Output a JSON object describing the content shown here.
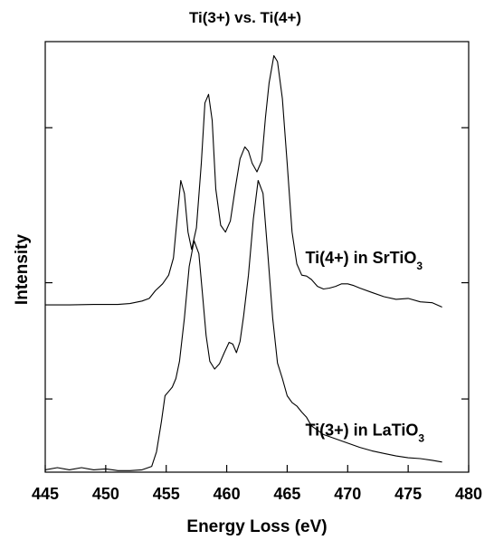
{
  "chart_data": {
    "type": "line",
    "title": "Ti(3+) vs. Ti(4+)",
    "xlabel": "Energy Loss (eV)",
    "ylabel": "Intensity",
    "xlim": [
      445,
      480
    ],
    "ylim": [
      0,
      1
    ],
    "x_ticks": [
      445,
      450,
      455,
      460,
      465,
      470,
      475,
      480
    ],
    "y_tick_values": [
      0.17,
      0.44,
      0.8
    ],
    "grid": false,
    "legend": "none",
    "annotations": [
      {
        "id": "ti4",
        "main": "Ti(4+) in SrTiO",
        "sub": "3",
        "x": 466.5,
        "y": 0.485
      },
      {
        "id": "ti3",
        "main": "Ti(3+) in LaTiO",
        "sub": "3",
        "x": 466.5,
        "y": 0.085
      }
    ],
    "series": [
      {
        "key": "ti4",
        "x": [
          445,
          447,
          449,
          451,
          452,
          453,
          453.6,
          454.1,
          454.7,
          455.2,
          455.6,
          455.9,
          456.2,
          456.5,
          456.8,
          457.1,
          457.5,
          457.9,
          458.2,
          458.5,
          458.8,
          459.1,
          459.5,
          459.9,
          460.3,
          460.7,
          461.1,
          461.5,
          461.8,
          462.1,
          462.5,
          462.9,
          463.2,
          463.5,
          463.9,
          464.2,
          464.6,
          465,
          465.4,
          465.8,
          466.2,
          466.6,
          467,
          467.5,
          468,
          468.5,
          469,
          469.5,
          470,
          470.5,
          471,
          472,
          473,
          474,
          475,
          476,
          477,
          477.8
        ],
        "y": [
          0.3885,
          0.3885,
          0.3895,
          0.3895,
          0.3915,
          0.3975,
          0.4035,
          0.4215,
          0.4375,
          0.4575,
          0.4975,
          0.5875,
          0.6775,
          0.6475,
          0.5575,
          0.5175,
          0.5675,
          0.7175,
          0.8575,
          0.8775,
          0.8175,
          0.6575,
          0.5735,
          0.5575,
          0.5835,
          0.6575,
          0.7275,
          0.7555,
          0.7455,
          0.7175,
          0.6975,
          0.7235,
          0.8235,
          0.9035,
          0.9675,
          0.9535,
          0.8675,
          0.7175,
          0.5575,
          0.4835,
          0.4575,
          0.4555,
          0.4475,
          0.4315,
          0.4255,
          0.4275,
          0.4315,
          0.4375,
          0.4375,
          0.4335,
          0.4275,
          0.4175,
          0.4075,
          0.4015,
          0.4035,
          0.3955,
          0.3935,
          0.3835
        ]
      },
      {
        "key": "ti3",
        "x": [
          445,
          446,
          447,
          448,
          449,
          450,
          451,
          452,
          453,
          453.8,
          454.2,
          454.6,
          454.9,
          455.2,
          455.5,
          455.8,
          456.1,
          456.5,
          456.9,
          457.3,
          457.7,
          458,
          458.3,
          458.6,
          459,
          459.4,
          459.8,
          460.2,
          460.5,
          460.8,
          461.1,
          461.4,
          461.8,
          462.2,
          462.6,
          463,
          463.4,
          463.8,
          464.2,
          464.6,
          465,
          465.4,
          465.8,
          466.2,
          466.6,
          467,
          467.5,
          468,
          469,
          470,
          471,
          472,
          473,
          474,
          475,
          476,
          477,
          477.8
        ],
        "y": [
          0.0055,
          0.0105,
          0.0055,
          0.0105,
          0.0055,
          0.0075,
          0.0035,
          0.0035,
          0.0055,
          0.0135,
          0.0475,
          0.1175,
          0.1775,
          0.1875,
          0.1975,
          0.2175,
          0.2575,
          0.3575,
          0.4775,
          0.5375,
          0.5075,
          0.4135,
          0.3175,
          0.2575,
          0.2395,
          0.2515,
          0.2775,
          0.3015,
          0.2975,
          0.2775,
          0.3035,
          0.3635,
          0.4575,
          0.5875,
          0.6775,
          0.6475,
          0.5075,
          0.3575,
          0.2535,
          0.2175,
          0.1775,
          0.1615,
          0.1535,
          0.1395,
          0.1275,
          0.1075,
          0.0975,
          0.0875,
          0.0775,
          0.0675,
          0.0575,
          0.0495,
          0.0435,
          0.0375,
          0.0335,
          0.0315,
          0.0275,
          0.0235
        ]
      }
    ]
  }
}
